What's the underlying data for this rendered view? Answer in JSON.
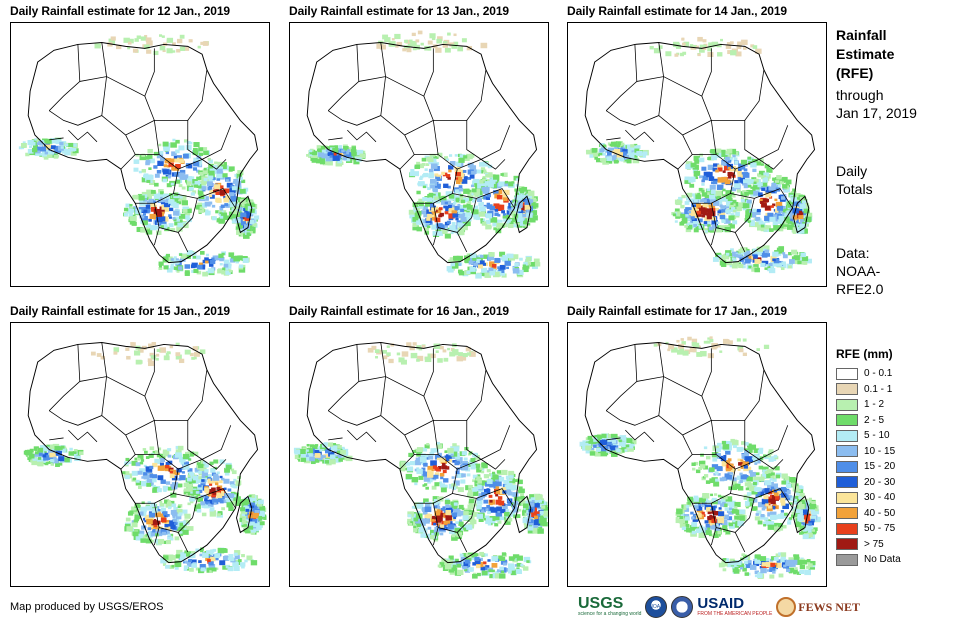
{
  "panels": [
    {
      "title": "Daily Rainfall estimate for 12 Jan., 2019",
      "intensity": 0.9,
      "seed": 12
    },
    {
      "title": "Daily Rainfall estimate for 13 Jan., 2019",
      "intensity": 1.0,
      "seed": 13
    },
    {
      "title": "Daily Rainfall estimate for 14 Jan., 2019",
      "intensity": 1.1,
      "seed": 14
    },
    {
      "title": "Daily Rainfall estimate for 15 Jan., 2019",
      "intensity": 0.95,
      "seed": 15
    },
    {
      "title": "Daily Rainfall estimate for 16 Jan., 2019",
      "intensity": 1.05,
      "seed": 16
    },
    {
      "title": "Daily Rainfall estimate for 17 Jan., 2019",
      "intensity": 1.0,
      "seed": 17
    }
  ],
  "side": {
    "title_line1": "Rainfall",
    "title_line2": "Estimate",
    "title_line3": "(RFE)",
    "through": "through",
    "date": "Jan 17, 2019",
    "daily": "Daily",
    "totals": "Totals",
    "data_label": "Data:",
    "data_source_1": "NOAA-",
    "data_source_2": "RFE2.0"
  },
  "legend": {
    "title": "RFE (mm)",
    "items": [
      {
        "label": "0 - 0.1",
        "color": "#ffffff"
      },
      {
        "label": "0.1 - 1",
        "color": "#e8d6b5"
      },
      {
        "label": "1 - 2",
        "color": "#b8f0b0"
      },
      {
        "label": "2 - 5",
        "color": "#6fdc6a"
      },
      {
        "label": "5 - 10",
        "color": "#b3ecf5"
      },
      {
        "label": "10 - 15",
        "color": "#8cbdf0"
      },
      {
        "label": "15 - 20",
        "color": "#4f8ee8"
      },
      {
        "label": "20 - 30",
        "color": "#1f5ed8"
      },
      {
        "label": "30 - 40",
        "color": "#fbe59a"
      },
      {
        "label": "40 - 50",
        "color": "#f2a23a"
      },
      {
        "label": "50 - 75",
        "color": "#e8401c"
      },
      {
        "label": "> 75",
        "color": "#a01a14"
      },
      {
        "label": "No Data",
        "color": "#9a9a9a"
      }
    ]
  },
  "footer": {
    "credit": "Map produced by USGS/EROS"
  },
  "logos": {
    "usgs": "USGS",
    "usgs_tag": "science for a changing world",
    "noaa": "NOAA",
    "usaid": "USAID",
    "usaid_tag": "FROM THE AMERICAN PEOPLE",
    "fews": "FEWS NET"
  }
}
